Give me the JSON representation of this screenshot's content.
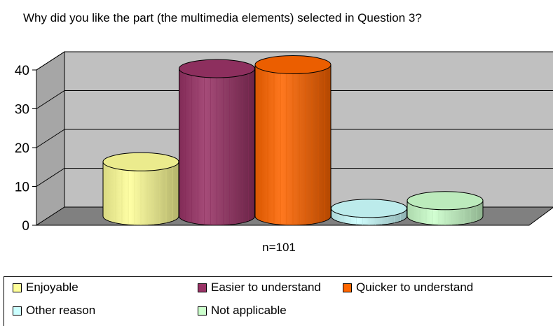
{
  "chart_data": {
    "type": "bar",
    "style": "3d-cylinder",
    "title": "Why did you like the part (the multimedia elements) selected in Question 3?",
    "xlabel": "n=101",
    "ylabel": "",
    "ylim": [
      0,
      40
    ],
    "yticks": [
      "0",
      "10",
      "20",
      "30",
      "40"
    ],
    "grid": true,
    "legend_position": "bottom",
    "series": [
      {
        "name": "Enjoyable",
        "values": [
          14
        ],
        "color": "#FFFF99"
      },
      {
        "name": "Easier to understand",
        "values": [
          38
        ],
        "color": "#993366"
      },
      {
        "name": "Quicker to understand",
        "values": [
          39
        ],
        "color": "#FF6600"
      },
      {
        "name": "Other reason",
        "values": [
          2
        ],
        "color": "#CCFFFF"
      },
      {
        "name": "Not applicable",
        "values": [
          4
        ],
        "color": "#CCFFCC"
      }
    ]
  }
}
